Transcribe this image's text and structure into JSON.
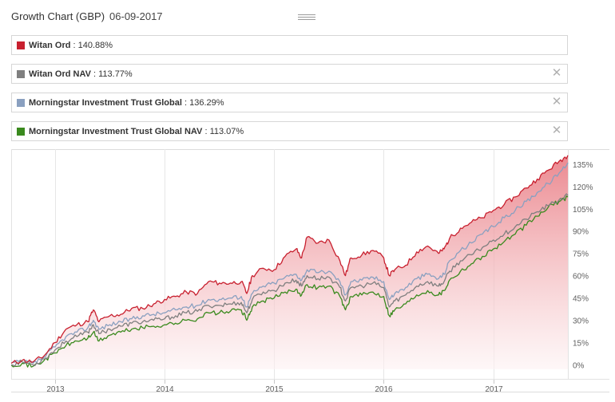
{
  "header": {
    "title": "Growth Chart (GBP)",
    "date": "06-09-2017"
  },
  "legend": [
    {
      "name": "Witan Ord",
      "value": ": 140.88%",
      "color": "#c8202f",
      "closable": false
    },
    {
      "name": "Witan Ord NAV",
      "value": ": 113.77%",
      "color": "#7f7f7f",
      "closable": true
    },
    {
      "name": "Morningstar Investment Trust Global",
      "value": ": 136.29%",
      "color": "#8aa0c0",
      "closable": true
    },
    {
      "name": "Morningstar Investment Trust Global NAV",
      "value": ": 113.07%",
      "color": "#3a8a1e",
      "closable": true
    }
  ],
  "chart_data": {
    "type": "line",
    "x_tick_labels": [
      "2013",
      "2014",
      "2015",
      "2016",
      "2017"
    ],
    "y_tick_labels": [
      "0%",
      "15%",
      "30%",
      "45%",
      "60%",
      "75%",
      "90%",
      "105%",
      "120%",
      "135%"
    ],
    "ylim": [
      -3,
      143
    ],
    "xlim": [
      2012.6,
      2017.68
    ],
    "x_ticks": [
      2013.0,
      2014.0,
      2015.0,
      2016.0,
      2017.0
    ],
    "y_ticks": [
      0,
      15,
      30,
      45,
      60,
      75,
      90,
      105,
      120,
      135
    ],
    "grid": {
      "vertical": true,
      "horizontal": false
    },
    "series": [
      {
        "name": "Witan Ord",
        "color": "#c8202f",
        "fill": true,
        "x": [
          2012.6,
          2012.7,
          2012.8,
          2012.9,
          2013.0,
          2013.1,
          2013.2,
          2013.3,
          2013.35,
          2013.4,
          2013.5,
          2013.6,
          2013.7,
          2013.8,
          2013.9,
          2014.0,
          2014.1,
          2014.2,
          2014.3,
          2014.4,
          2014.5,
          2014.6,
          2014.7,
          2014.75,
          2014.8,
          2014.9,
          2015.0,
          2015.1,
          2015.2,
          2015.25,
          2015.3,
          2015.4,
          2015.5,
          2015.6,
          2015.65,
          2015.7,
          2015.8,
          2015.9,
          2016.0,
          2016.05,
          2016.1,
          2016.2,
          2016.3,
          2016.4,
          2016.5,
          2016.55,
          2016.6,
          2016.7,
          2016.8,
          2016.9,
          2017.0,
          2017.1,
          2017.2,
          2017.3,
          2017.4,
          2017.5,
          2017.6,
          2017.68
        ],
        "values": [
          1,
          3,
          2,
          6,
          15,
          24,
          27,
          29,
          37,
          29,
          33,
          34,
          38,
          38,
          41,
          44,
          46,
          49,
          48,
          56,
          55,
          55,
          56,
          48,
          60,
          65,
          64,
          73,
          78,
          72,
          86,
          82,
          84,
          70,
          60,
          72,
          74,
          77,
          72,
          60,
          64,
          67,
          76,
          80,
          75,
          78,
          85,
          92,
          96,
          99,
          104,
          108,
          113,
          119,
          125,
          131,
          137,
          141
        ]
      },
      {
        "name": "Morningstar Investment Trust Global",
        "color": "#8aa0c0",
        "fill": false,
        "x": [
          2012.6,
          2012.7,
          2012.8,
          2012.9,
          2013.0,
          2013.1,
          2013.2,
          2013.3,
          2013.35,
          2013.4,
          2013.5,
          2013.6,
          2013.7,
          2013.8,
          2013.9,
          2014.0,
          2014.1,
          2014.2,
          2014.3,
          2014.4,
          2014.5,
          2014.6,
          2014.7,
          2014.75,
          2014.8,
          2014.9,
          2015.0,
          2015.1,
          2015.2,
          2015.25,
          2015.3,
          2015.4,
          2015.5,
          2015.6,
          2015.65,
          2015.7,
          2015.8,
          2015.9,
          2016.0,
          2016.05,
          2016.1,
          2016.2,
          2016.3,
          2016.4,
          2016.5,
          2016.55,
          2016.6,
          2016.7,
          2016.8,
          2016.9,
          2017.0,
          2017.1,
          2017.2,
          2017.3,
          2017.4,
          2017.5,
          2017.6,
          2017.68
        ],
        "values": [
          1,
          2,
          1,
          5,
          12,
          19,
          22,
          25,
          30,
          24,
          27,
          29,
          31,
          33,
          34,
          35,
          37,
          39,
          40,
          44,
          44,
          45,
          46,
          39,
          48,
          53,
          55,
          59,
          61,
          57,
          64,
          62,
          63,
          56,
          47,
          56,
          57,
          59,
          56,
          44,
          48,
          52,
          58,
          61,
          58,
          61,
          70,
          77,
          82,
          88,
          93,
          99,
          104,
          110,
          116,
          122,
          129,
          136
        ]
      },
      {
        "name": "Witan Ord NAV",
        "color": "#7f7f7f",
        "fill": false,
        "x": [
          2012.6,
          2012.7,
          2012.8,
          2012.9,
          2013.0,
          2013.1,
          2013.2,
          2013.3,
          2013.35,
          2013.4,
          2013.5,
          2013.6,
          2013.7,
          2013.8,
          2013.9,
          2014.0,
          2014.1,
          2014.2,
          2014.3,
          2014.4,
          2014.5,
          2014.6,
          2014.7,
          2014.75,
          2014.8,
          2014.9,
          2015.0,
          2015.1,
          2015.2,
          2015.25,
          2015.3,
          2015.4,
          2015.5,
          2015.6,
          2015.65,
          2015.7,
          2015.8,
          2015.9,
          2016.0,
          2016.05,
          2016.1,
          2016.2,
          2016.3,
          2016.4,
          2016.5,
          2016.55,
          2016.6,
          2016.7,
          2016.8,
          2016.9,
          2017.0,
          2017.1,
          2017.2,
          2017.3,
          2017.4,
          2017.5,
          2017.6,
          2017.68
        ],
        "values": [
          0,
          2,
          0,
          4,
          10,
          16,
          19,
          22,
          27,
          21,
          24,
          26,
          28,
          29,
          30,
          31,
          33,
          35,
          36,
          40,
          40,
          41,
          42,
          35,
          44,
          49,
          50,
          55,
          57,
          53,
          60,
          58,
          59,
          52,
          43,
          52,
          53,
          55,
          52,
          39,
          43,
          47,
          53,
          56,
          53,
          56,
          63,
          70,
          74,
          79,
          84,
          88,
          93,
          98,
          103,
          107,
          111,
          114
        ]
      },
      {
        "name": "Morningstar Investment Trust Global NAV",
        "color": "#3a8a1e",
        "fill": false,
        "x": [
          2012.6,
          2012.7,
          2012.8,
          2012.9,
          2013.0,
          2013.1,
          2013.2,
          2013.3,
          2013.35,
          2013.4,
          2013.5,
          2013.6,
          2013.7,
          2013.8,
          2013.9,
          2014.0,
          2014.1,
          2014.2,
          2014.3,
          2014.4,
          2014.5,
          2014.6,
          2014.7,
          2014.75,
          2014.8,
          2014.9,
          2015.0,
          2015.1,
          2015.2,
          2015.25,
          2015.3,
          2015.4,
          2015.5,
          2015.6,
          2015.65,
          2015.7,
          2015.8,
          2015.9,
          2016.0,
          2016.05,
          2016.1,
          2016.2,
          2016.3,
          2016.4,
          2016.5,
          2016.55,
          2016.6,
          2016.7,
          2016.8,
          2016.9,
          2017.0,
          2017.1,
          2017.2,
          2017.3,
          2017.4,
          2017.5,
          2017.6,
          2017.68
        ],
        "values": [
          0,
          1,
          -1,
          3,
          8,
          13,
          16,
          18,
          22,
          16,
          20,
          22,
          24,
          25,
          26,
          27,
          28,
          30,
          31,
          35,
          35,
          36,
          37,
          30,
          39,
          43,
          45,
          49,
          51,
          47,
          54,
          52,
          53,
          46,
          37,
          46,
          47,
          49,
          46,
          33,
          37,
          41,
          47,
          50,
          47,
          50,
          57,
          63,
          68,
          73,
          78,
          83,
          88,
          94,
          100,
          106,
          110,
          113
        ]
      }
    ]
  }
}
